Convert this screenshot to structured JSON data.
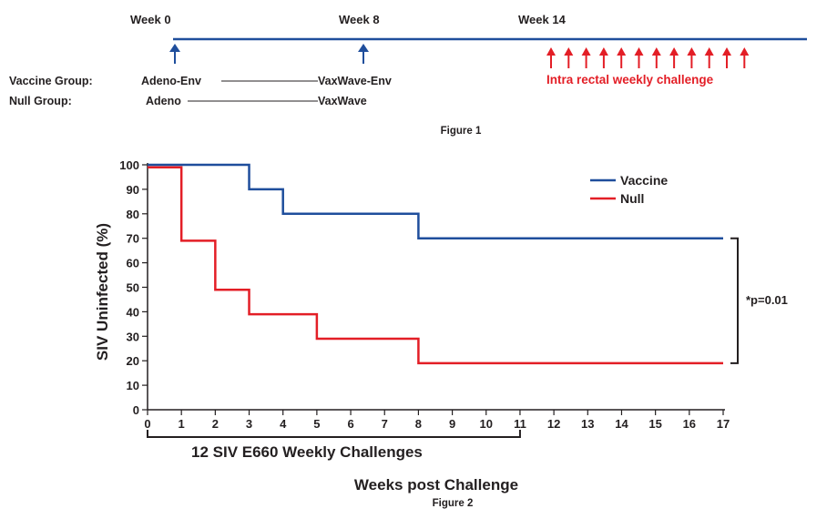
{
  "colors": {
    "vaccine": "#1f4e9c",
    "null": "#e31e26",
    "text": "#231f20"
  },
  "figure1": {
    "weeks": [
      {
        "label": "Week 0"
      },
      {
        "label": "Week 8"
      },
      {
        "label": "Week 14"
      }
    ],
    "groups": [
      {
        "label": "Vaccine Group:",
        "prime": "Adeno-Env",
        "boost": "VaxWave-Env"
      },
      {
        "label": "Null Group:",
        "prime": "Adeno",
        "boost": "VaxWave"
      }
    ],
    "challenge_count": 12,
    "challenge_label": "Intra rectal weekly challenge",
    "caption": "Figure 1"
  },
  "chart_data": {
    "type": "line",
    "step": true,
    "title": "",
    "xlabel": "Weeks post Challenge",
    "ylabel": "SIV Uninfected (%)",
    "xlim": [
      0,
      17
    ],
    "ylim": [
      0,
      100
    ],
    "xticks": [
      0,
      1,
      2,
      3,
      4,
      5,
      6,
      7,
      8,
      9,
      10,
      11,
      12,
      13,
      14,
      15,
      16,
      17
    ],
    "yticks": [
      0,
      10,
      20,
      30,
      40,
      50,
      60,
      70,
      80,
      90,
      100
    ],
    "legend_position": "top-right",
    "series": [
      {
        "name": "Vaccine",
        "color": "#1f4e9c",
        "x": [
          0,
          3,
          4,
          8,
          17
        ],
        "y": [
          100,
          90,
          80,
          70,
          70
        ]
      },
      {
        "name": "Null",
        "color": "#e31e26",
        "x": [
          0,
          1,
          2,
          3,
          5,
          8,
          17
        ],
        "y": [
          99,
          69,
          49,
          39,
          29,
          19,
          19
        ]
      }
    ],
    "significance": "*p=0.01",
    "bracket_label": "12 SIV E660 Weekly Challenges",
    "bracket_range": [
      0,
      11
    ],
    "caption": "Figure 2"
  }
}
